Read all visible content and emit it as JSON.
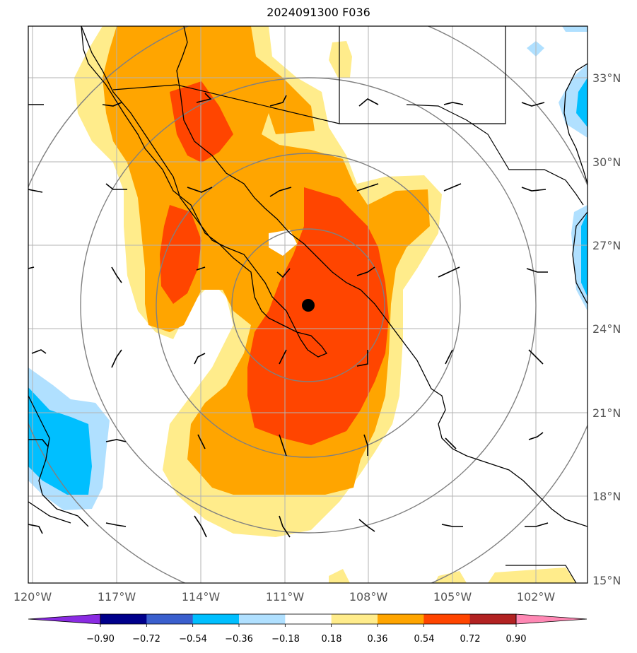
{
  "title": "2024091300 F036",
  "map": {
    "lat_labels": [
      "33°N",
      "30°N",
      "27°N",
      "24°N",
      "21°N",
      "18°N",
      "15°N"
    ],
    "lon_labels": [
      "120°W",
      "117°W",
      "114°W",
      "111°W",
      "108°W",
      "105°W",
      "102°W"
    ],
    "storm_center": {
      "lon": "-109.2",
      "lat": "24.8"
    }
  },
  "colorbar": {
    "levels": [
      "−0.90",
      "−0.72",
      "−0.54",
      "−0.36",
      "−0.18",
      "0.18",
      "0.36",
      "0.54",
      "0.72",
      "0.90"
    ],
    "colors": [
      "#8a2be2",
      "#00008b",
      "#3a5fcd",
      "#00bfff",
      "#b0e0ff",
      "#ffffff",
      "#ffec8b",
      "#ffa500",
      "#ff4500",
      "#b22222",
      "#ff88b4"
    ]
  },
  "chart_data": {
    "type": "heatmap",
    "title": "2024091300 F036",
    "xlabel": "",
    "ylabel": "",
    "xlim": [
      -120,
      -100
    ],
    "ylim": [
      15,
      35
    ],
    "grid": true,
    "contour_levels": [
      -0.9,
      -0.72,
      -0.54,
      -0.36,
      -0.18,
      0.18,
      0.36,
      0.54,
      0.72,
      0.9
    ]
  }
}
